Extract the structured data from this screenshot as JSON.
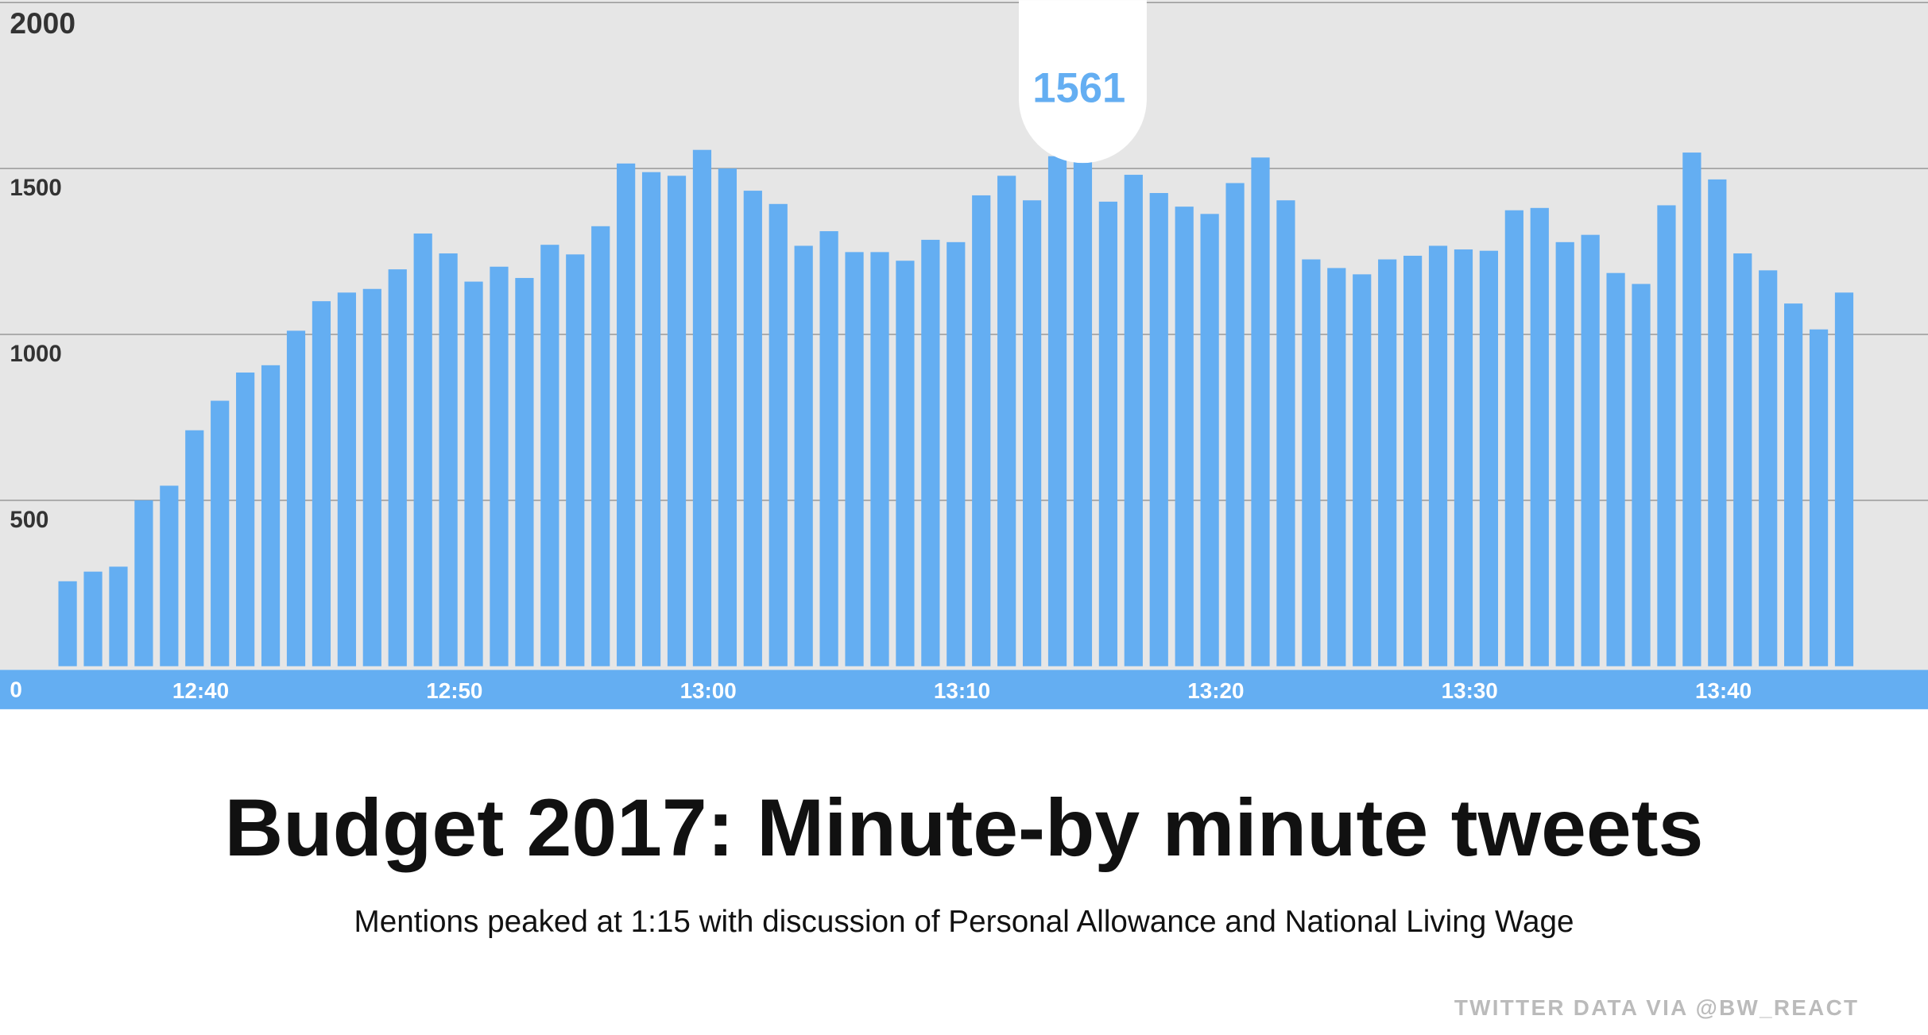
{
  "chart_data": {
    "type": "bar",
    "title": "Budget 2017: Minute-by minute tweets",
    "subtitle": "Mentions peaked at 1:15 with discussion of Personal Allowance and National Living Wage",
    "source": "TWITTER DATA VIA @BW_REACT",
    "color": "#64aef2",
    "grid": true,
    "ylim": [
      0,
      2000
    ],
    "yticks": [
      0,
      500,
      1000,
      1500,
      2000
    ],
    "categories": [
      null,
      null,
      null,
      null,
      null,
      "12:40",
      null,
      null,
      null,
      null,
      null,
      null,
      null,
      null,
      null,
      "12:50",
      null,
      null,
      null,
      null,
      null,
      null,
      null,
      null,
      null,
      "13:00",
      null,
      null,
      null,
      null,
      null,
      null,
      null,
      null,
      null,
      "13:10",
      null,
      null,
      null,
      null,
      null,
      null,
      null,
      null,
      null,
      "13:20",
      null,
      null,
      null,
      null,
      null,
      null,
      null,
      null,
      null,
      "13:30",
      null,
      null,
      null,
      null,
      null,
      null,
      null,
      null,
      null,
      "13:40",
      null,
      null,
      null,
      null,
      null
    ],
    "values": [
      256,
      285,
      300,
      500,
      544,
      711,
      800,
      885,
      907,
      1011,
      1100,
      1126,
      1137,
      1196,
      1304,
      1244,
      1159,
      1204,
      1170,
      1270,
      1241,
      1326,
      1515,
      1489,
      1478,
      1556,
      1500,
      1433,
      1393,
      1267,
      1311,
      1248,
      1248,
      1222,
      1285,
      1278,
      1419,
      1478,
      1404,
      1537,
      1561,
      1400,
      1481,
      1426,
      1385,
      1363,
      1456,
      1533,
      1404,
      1226,
      1200,
      1181,
      1226,
      1237,
      1267,
      1256,
      1252,
      1374,
      1381,
      1278,
      1300,
      1185,
      1152,
      1389,
      1548,
      1467,
      1244,
      1193,
      1093,
      1015,
      1126
    ]
  }
}
